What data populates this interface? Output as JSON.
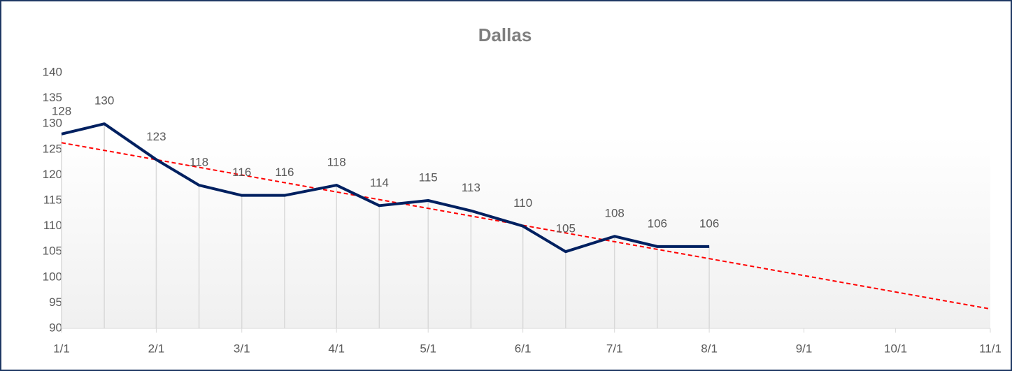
{
  "chart_data": {
    "type": "line",
    "title": "Dallas",
    "x": [
      "1/1",
      "1/15",
      "2/1",
      "2/15",
      "3/1",
      "3/15",
      "4/1",
      "4/15",
      "5/1",
      "5/15",
      "6/1",
      "6/15",
      "7/1",
      "7/15",
      "8/1"
    ],
    "series": [
      {
        "name": "Dallas",
        "color": "#002060",
        "values": [
          128,
          130,
          123,
          118,
          116,
          116,
          118,
          114,
          115,
          113,
          110,
          105,
          108,
          106,
          106
        ]
      }
    ],
    "trendline": {
      "x": [
        "1/1",
        "11/1"
      ],
      "values": [
        126.3,
        93.8
      ],
      "color": "#ff0000"
    },
    "xlim": [
      "1/1",
      "11/1"
    ],
    "xticks": [
      "1/1",
      "2/1",
      "3/1",
      "4/1",
      "5/1",
      "6/1",
      "7/1",
      "8/1",
      "9/1",
      "10/1",
      "11/1"
    ],
    "ylim": [
      90,
      140
    ],
    "yticks": [
      90,
      95,
      100,
      105,
      110,
      115,
      120,
      125,
      130,
      135,
      140
    ],
    "drop_lines": true
  }
}
